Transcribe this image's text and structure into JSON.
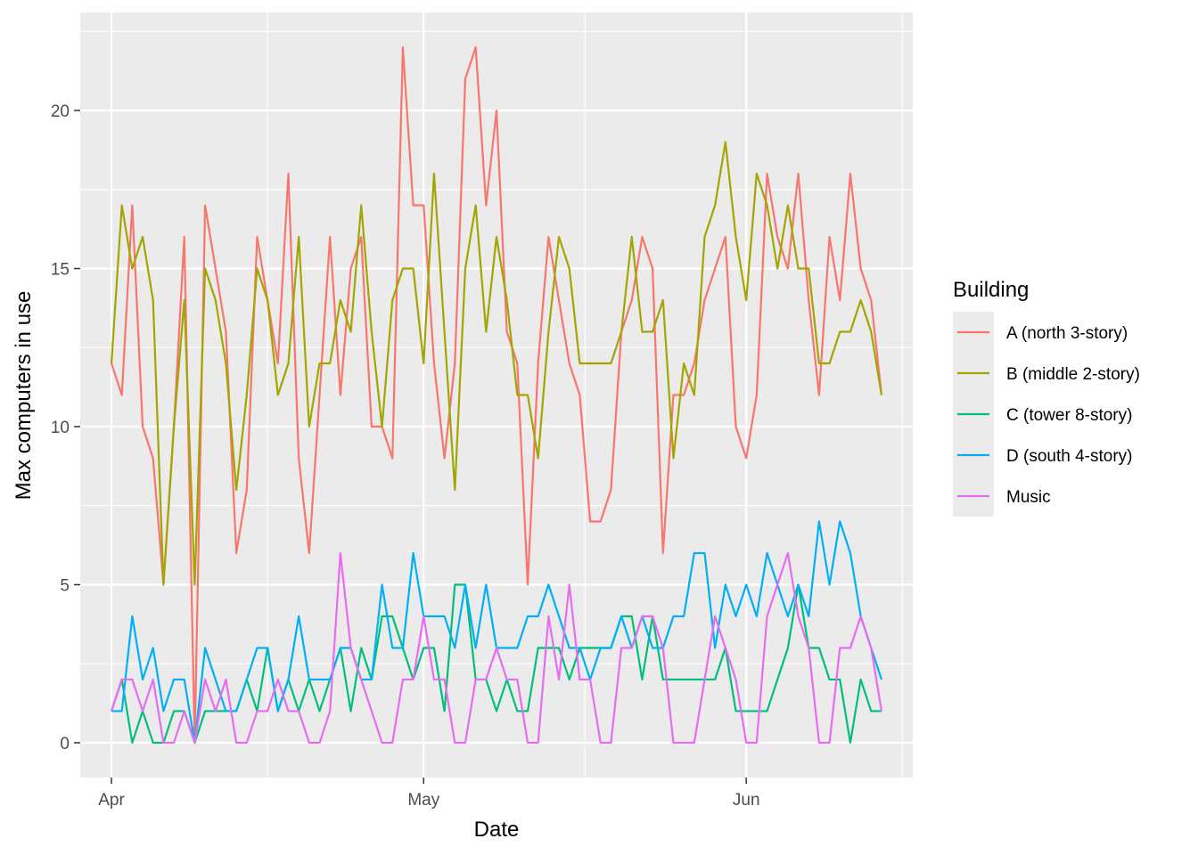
{
  "chart_data": {
    "type": "line",
    "title": "",
    "xlabel": "Date",
    "ylabel": "Max computers in use",
    "x_start": "2023-04-01",
    "x_step_days": 1,
    "xlim": [
      "2023-03-29",
      "2023-06-17"
    ],
    "ylim": [
      -1.1,
      23.1
    ],
    "x_ticks": [
      {
        "date": "2023-04-01",
        "label": "Apr"
      },
      {
        "date": "2023-05-01",
        "label": "May"
      },
      {
        "date": "2023-06-01",
        "label": "Jun"
      }
    ],
    "y_ticks": [
      0,
      5,
      10,
      15,
      20
    ],
    "grid": true,
    "legend": {
      "title": "Building",
      "position": "right"
    },
    "series": [
      {
        "name": "A (north 3-story)",
        "color": "#F8766D",
        "values": [
          12,
          11,
          17,
          10,
          9,
          5,
          10,
          16,
          0,
          17,
          15,
          13,
          6,
          8,
          16,
          14,
          12,
          18,
          9,
          6,
          11,
          16,
          11,
          15,
          16,
          10,
          10,
          9,
          22,
          17,
          17,
          12,
          9,
          12,
          21,
          22,
          17,
          20,
          13,
          12,
          5,
          12,
          16,
          14,
          12,
          11,
          7,
          7,
          8,
          13,
          14,
          16,
          15,
          6,
          11,
          11,
          12,
          14,
          15,
          16,
          10,
          9,
          11,
          18,
          16,
          15,
          18,
          14,
          11,
          16,
          14,
          18,
          15,
          14,
          11
        ]
      },
      {
        "name": "B (middle 2-story)",
        "color": "#A3A500",
        "values": [
          12,
          17,
          15,
          16,
          14,
          5,
          10,
          14,
          5,
          15,
          14,
          12,
          8,
          11,
          15,
          14,
          11,
          12,
          16,
          10,
          12,
          12,
          14,
          13,
          17,
          13,
          10,
          14,
          15,
          15,
          12,
          18,
          13,
          8,
          15,
          17,
          13,
          16,
          14,
          11,
          11,
          9,
          13,
          16,
          15,
          12,
          12,
          12,
          12,
          13,
          16,
          13,
          13,
          14,
          9,
          12,
          11,
          16,
          17,
          19,
          16,
          14,
          18,
          17,
          15,
          17,
          15,
          15,
          12,
          12,
          13,
          13,
          14,
          13,
          11
        ]
      },
      {
        "name": "C (tower 8-story)",
        "color": "#00BF7D",
        "values": [
          1,
          2,
          0,
          1,
          0,
          0,
          1,
          1,
          0,
          1,
          1,
          1,
          1,
          2,
          1,
          3,
          1,
          2,
          1,
          2,
          1,
          2,
          3,
          1,
          3,
          2,
          4,
          4,
          3,
          2,
          3,
          3,
          1,
          5,
          5,
          2,
          2,
          1,
          2,
          1,
          1,
          3,
          3,
          3,
          2,
          3,
          3,
          3,
          3,
          4,
          4,
          2,
          4,
          2,
          2,
          2,
          2,
          2,
          2,
          3,
          1,
          1,
          1,
          1,
          2,
          3,
          5,
          3,
          3,
          2,
          2,
          0,
          2,
          1,
          1
        ]
      },
      {
        "name": "D (south 4-story)",
        "color": "#00B0F6",
        "values": [
          1,
          1,
          4,
          2,
          3,
          1,
          2,
          2,
          0,
          3,
          2,
          1,
          1,
          2,
          3,
          3,
          1,
          2,
          4,
          2,
          2,
          2,
          3,
          3,
          2,
          2,
          5,
          3,
          3,
          6,
          4,
          4,
          4,
          3,
          5,
          3,
          5,
          3,
          3,
          3,
          4,
          4,
          5,
          4,
          3,
          3,
          2,
          3,
          3,
          4,
          3,
          4,
          3,
          3,
          4,
          4,
          6,
          6,
          3,
          5,
          4,
          5,
          4,
          6,
          5,
          4,
          5,
          4,
          7,
          5,
          7,
          6,
          4,
          3,
          2
        ]
      },
      {
        "name": "Music",
        "color": "#E76BF3",
        "values": [
          1,
          2,
          2,
          1,
          2,
          0,
          0,
          1,
          0,
          2,
          1,
          2,
          0,
          0,
          1,
          1,
          2,
          1,
          1,
          0,
          0,
          1,
          6,
          3,
          2,
          1,
          0,
          0,
          2,
          2,
          4,
          2,
          2,
          0,
          0,
          2,
          2,
          3,
          2,
          2,
          0,
          0,
          4,
          2,
          5,
          2,
          2,
          0,
          0,
          3,
          3,
          4,
          4,
          3,
          0,
          0,
          0,
          2,
          4,
          3,
          2,
          0,
          0,
          4,
          5,
          6,
          4,
          3,
          0,
          0,
          3,
          3,
          4,
          3,
          1
        ]
      }
    ]
  }
}
